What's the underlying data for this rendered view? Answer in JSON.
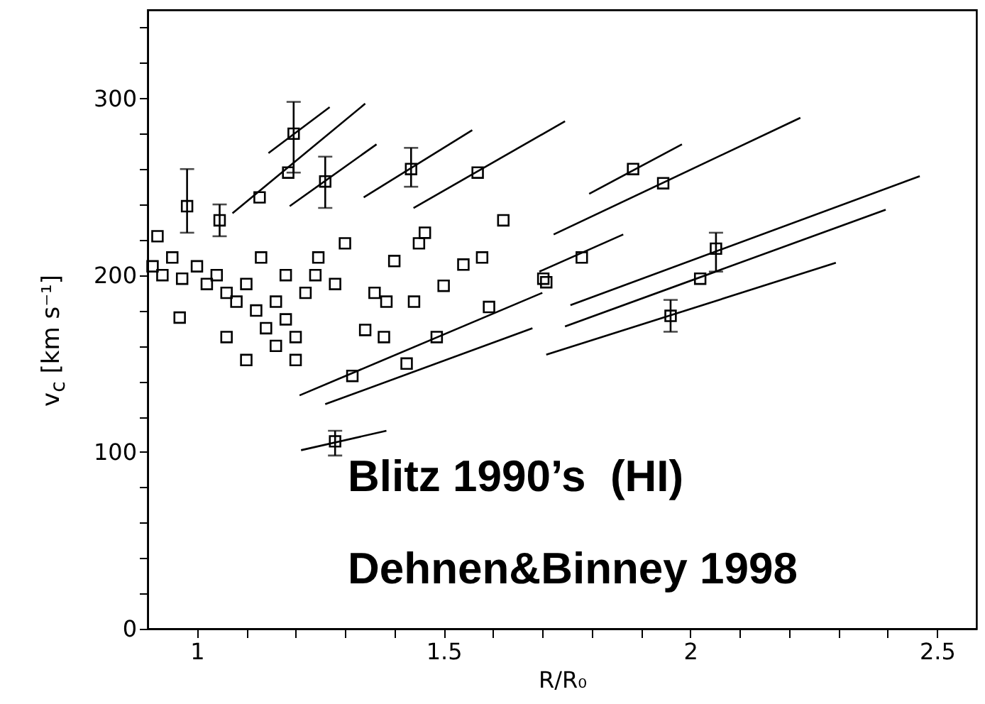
{
  "chart_data": {
    "type": "scatter",
    "xlabel": "R/R₀",
    "ylabel": "v$_{c}$ [km s⁻¹]",
    "annotations": [
      "Blitz 1990’s  (HI)",
      "Dehnen&Binney 1998"
    ],
    "xlim": [
      0.9,
      2.58
    ],
    "ylim": [
      0,
      350
    ],
    "xticks": [
      1,
      {
        "value": 1.1,
        "label": null
      },
      {
        "value": 1.2,
        "label": null
      },
      {
        "value": 1.3,
        "label": null
      },
      {
        "value": 1.4,
        "label": null
      },
      1.5,
      {
        "value": 1.6,
        "label": null
      },
      {
        "value": 1.7,
        "label": null
      },
      {
        "value": 1.8,
        "label": null
      },
      {
        "value": 1.9,
        "label": null
      },
      2,
      {
        "value": 2.1,
        "label": null
      },
      {
        "value": 2.2,
        "label": null
      },
      {
        "value": 2.3,
        "label": null
      },
      {
        "value": 2.4,
        "label": null
      },
      2.5
    ],
    "yticks": [
      0,
      {
        "value": 20,
        "label": null
      },
      {
        "value": 40,
        "label": null
      },
      {
        "value": 60,
        "label": null
      },
      {
        "value": 80,
        "label": null
      },
      100,
      {
        "value": 120,
        "label": null
      },
      {
        "value": 140,
        "label": null
      },
      {
        "value": 160,
        "label": null
      },
      {
        "value": 180,
        "label": null
      },
      200,
      {
        "value": 220,
        "label": null
      },
      {
        "value": 240,
        "label": null
      },
      {
        "value": 260,
        "label": null
      },
      {
        "value": 280,
        "label": null
      },
      300,
      {
        "value": 320,
        "label": null
      },
      {
        "value": 340,
        "label": null
      }
    ],
    "grid": false,
    "series": [
      {
        "color": "#000000",
        "marker": "square",
        "x": [
          1.196,
          1.185,
          1.127,
          1.26,
          0.98,
          1.046,
          1.434,
          1.569,
          1.884,
          1.945,
          1.78,
          2.052,
          2.02,
          1.96,
          1.708,
          1.28,
          1.315,
          1.425,
          1.486,
          1.592,
          1.379,
          1.702,
          0.965,
          1.621,
          1.5,
          1.384,
          1.341,
          1.462,
          1.246,
          1.3,
          1.578,
          1.54,
          0.92,
          0.91,
          0.93,
          0.95,
          0.97,
          1.0,
          1.02,
          1.04,
          1.06,
          1.08,
          1.1,
          1.12,
          1.14,
          1.16,
          1.18,
          1.2,
          1.22,
          1.24,
          1.06,
          1.1,
          1.16,
          1.2,
          1.13,
          1.18,
          1.28,
          1.36,
          1.4,
          1.45,
          1.44
        ],
        "values": [
          280,
          258,
          244,
          253,
          239,
          231,
          260,
          258,
          260,
          252,
          210,
          215,
          198,
          177,
          196,
          106,
          143,
          150,
          165,
          182,
          165,
          198,
          176,
          231,
          194,
          185,
          169,
          224,
          210,
          218,
          210,
          206,
          222,
          205,
          200,
          210,
          198,
          205,
          195,
          200,
          190,
          185,
          195,
          180,
          170,
          185,
          175,
          165,
          190,
          200,
          165,
          152,
          160,
          152,
          210,
          200,
          195,
          190,
          208,
          218,
          185
        ],
        "errors": [
          [
            258,
            298
          ],
          null,
          null,
          [
            238,
            267
          ],
          [
            224,
            260
          ],
          [
            222,
            240
          ],
          [
            250,
            272
          ],
          null,
          null,
          null,
          null,
          [
            202,
            224
          ],
          null,
          [
            168,
            186
          ],
          null,
          [
            98,
            112
          ],
          null,
          null,
          null,
          null,
          null,
          null,
          null,
          null,
          null,
          null,
          null,
          null,
          null,
          null,
          null,
          null,
          null,
          null,
          null,
          null,
          null,
          null,
          null,
          null,
          null,
          null,
          null,
          null,
          null,
          null,
          null,
          null,
          null,
          null,
          null,
          null,
          null,
          null,
          null,
          null,
          null,
          null,
          null,
          null,
          null
        ]
      },
      {
        "type": "line",
        "color": "#000000",
        "x": [
          1.145,
          1.269
        ],
        "values": [
          269,
          295
        ]
      },
      {
        "type": "line",
        "color": "#000000",
        "x": [
          1.072,
          1.341
        ],
        "values": [
          235,
          297
        ]
      },
      {
        "type": "line",
        "color": "#000000",
        "x": [
          1.188,
          1.364
        ],
        "values": [
          239,
          274
        ]
      },
      {
        "type": "line",
        "color": "#000000",
        "x": [
          1.338,
          1.558
        ],
        "values": [
          244,
          282
        ]
      },
      {
        "type": "line",
        "color": "#000000",
        "x": [
          1.439,
          1.746
        ],
        "values": [
          238,
          287
        ]
      },
      {
        "type": "line",
        "color": "#000000",
        "x": [
          1.795,
          1.983
        ],
        "values": [
          246,
          274
        ]
      },
      {
        "type": "line",
        "color": "#000000",
        "x": [
          1.723,
          2.223
        ],
        "values": [
          223,
          289
        ]
      },
      {
        "type": "line",
        "color": "#000000",
        "x": [
          1.694,
          1.864
        ],
        "values": [
          202,
          223
        ]
      },
      {
        "type": "line",
        "color": "#000000",
        "x": [
          1.757,
          2.465
        ],
        "values": [
          183,
          256
        ]
      },
      {
        "type": "line",
        "color": "#000000",
        "x": [
          1.746,
          2.396
        ],
        "values": [
          171,
          237
        ]
      },
      {
        "type": "line",
        "color": "#000000",
        "x": [
          1.708,
          2.295
        ],
        "values": [
          155,
          207
        ]
      },
      {
        "type": "line",
        "color": "#000000",
        "x": [
          1.211,
          1.384
        ],
        "values": [
          101,
          112
        ]
      },
      {
        "type": "line",
        "color": "#000000",
        "x": [
          1.208,
          1.7
        ],
        "values": [
          132,
          190
        ]
      },
      {
        "type": "line",
        "color": "#000000",
        "x": [
          1.26,
          1.68
        ],
        "values": [
          127,
          170
        ]
      }
    ]
  }
}
